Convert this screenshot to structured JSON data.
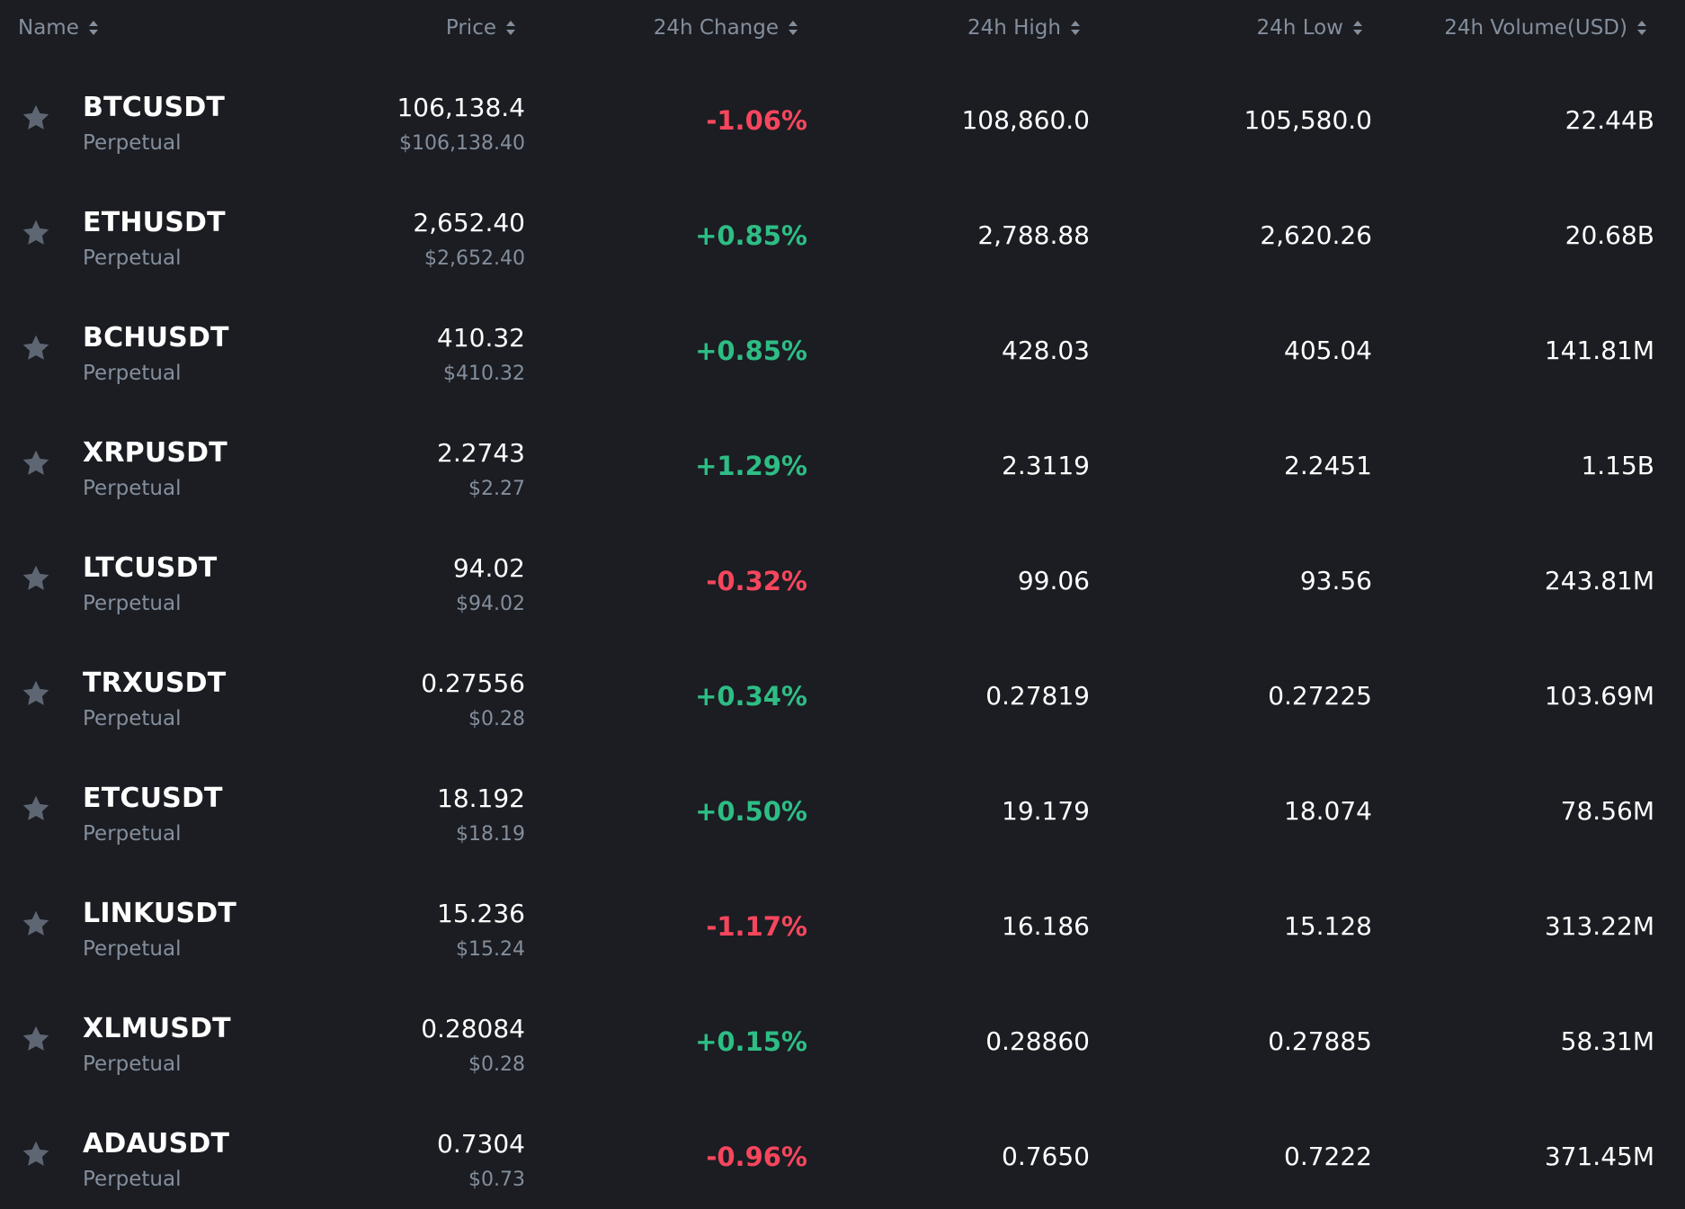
{
  "header": {
    "name": "Name",
    "price": "Price",
    "change": "24h Change",
    "high": "24h High",
    "low": "24h Low",
    "volume": "24h Volume(USD)"
  },
  "colors": {
    "background": "#1b1d22",
    "positive": "#2ebd85",
    "negative": "#f6465d",
    "muted": "#848e9c",
    "star": "#5e6673"
  },
  "rows": [
    {
      "symbol": "BTCUSDT",
      "contract": "Perpetual",
      "price": "106,138.4",
      "price_usd": "$106,138.40",
      "change": "-1.06%",
      "direction": "neg",
      "high": "108,860.0",
      "low": "105,580.0",
      "volume": "22.44B"
    },
    {
      "symbol": "ETHUSDT",
      "contract": "Perpetual",
      "price": "2,652.40",
      "price_usd": "$2,652.40",
      "change": "+0.85%",
      "direction": "pos",
      "high": "2,788.88",
      "low": "2,620.26",
      "volume": "20.68B"
    },
    {
      "symbol": "BCHUSDT",
      "contract": "Perpetual",
      "price": "410.32",
      "price_usd": "$410.32",
      "change": "+0.85%",
      "direction": "pos",
      "high": "428.03",
      "low": "405.04",
      "volume": "141.81M"
    },
    {
      "symbol": "XRPUSDT",
      "contract": "Perpetual",
      "price": "2.2743",
      "price_usd": "$2.27",
      "change": "+1.29%",
      "direction": "pos",
      "high": "2.3119",
      "low": "2.2451",
      "volume": "1.15B"
    },
    {
      "symbol": "LTCUSDT",
      "contract": "Perpetual",
      "price": "94.02",
      "price_usd": "$94.02",
      "change": "-0.32%",
      "direction": "neg",
      "high": "99.06",
      "low": "93.56",
      "volume": "243.81M"
    },
    {
      "symbol": "TRXUSDT",
      "contract": "Perpetual",
      "price": "0.27556",
      "price_usd": "$0.28",
      "change": "+0.34%",
      "direction": "pos",
      "high": "0.27819",
      "low": "0.27225",
      "volume": "103.69M"
    },
    {
      "symbol": "ETCUSDT",
      "contract": "Perpetual",
      "price": "18.192",
      "price_usd": "$18.19",
      "change": "+0.50%",
      "direction": "pos",
      "high": "19.179",
      "low": "18.074",
      "volume": "78.56M"
    },
    {
      "symbol": "LINKUSDT",
      "contract": "Perpetual",
      "price": "15.236",
      "price_usd": "$15.24",
      "change": "-1.17%",
      "direction": "neg",
      "high": "16.186",
      "low": "15.128",
      "volume": "313.22M"
    },
    {
      "symbol": "XLMUSDT",
      "contract": "Perpetual",
      "price": "0.28084",
      "price_usd": "$0.28",
      "change": "+0.15%",
      "direction": "pos",
      "high": "0.28860",
      "low": "0.27885",
      "volume": "58.31M"
    },
    {
      "symbol": "ADAUSDT",
      "contract": "Perpetual",
      "price": "0.7304",
      "price_usd": "$0.73",
      "change": "-0.96%",
      "direction": "neg",
      "high": "0.7650",
      "low": "0.7222",
      "volume": "371.45M"
    }
  ]
}
